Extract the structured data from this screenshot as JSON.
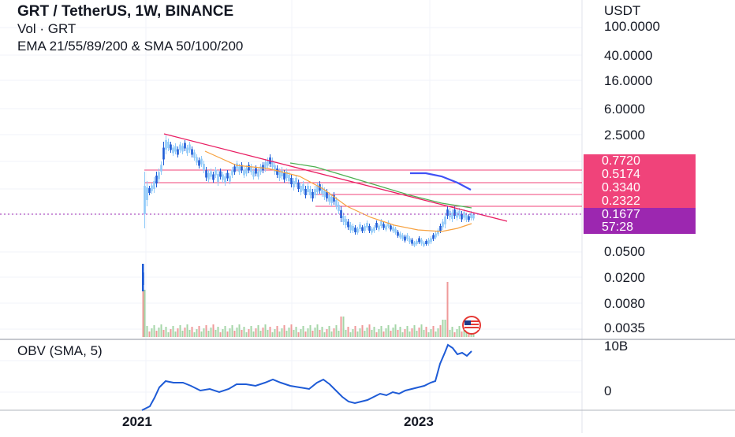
{
  "header": {
    "title": "GRT / TetherUS, 1W, BINANCE",
    "volume_label": "Vol · GRT",
    "indicators_label": "EMA 21/55/89/200 & SMA 50/100/200"
  },
  "price_axis": {
    "currency": "USDT",
    "scale": "log",
    "ticks": [
      "100.0000",
      "40.0000",
      "16.0000",
      "6.0000",
      "2.5000",
      "0.0500",
      "0.0200",
      "0.0080",
      "0.0035"
    ]
  },
  "price_labels": [
    {
      "text": "0.7720",
      "color": "#f0437a"
    },
    {
      "text": "0.5174",
      "color": "#f0437a"
    },
    {
      "text": "0.3340",
      "color": "#f0437a"
    },
    {
      "text": "0.2322",
      "color": "#f0437a"
    },
    {
      "text": "0.1677",
      "color": "#9c27b0"
    },
    {
      "text": "57:28",
      "color": "#9c27b0"
    }
  ],
  "obv_panel": {
    "label": "OBV (SMA, 5)",
    "ticks": [
      "10B",
      "0"
    ]
  },
  "time_axis": {
    "labels": [
      "2021",
      "2023"
    ]
  },
  "colors": {
    "up_candle": "#90caf9",
    "down_candle": "#1e5bd6",
    "ema_orange": "#f7a240",
    "ema_green": "#4caf50",
    "sma_blue": "#3f51f5",
    "trendline": "#e91e63",
    "horizontal_levels": "#f0437a",
    "current_price_line": "#9c27b0",
    "obv_line": "#1e5bd6",
    "volume_up": "#a5d6a7",
    "volume_down": "#ef9a9a"
  },
  "chart_data": {
    "type": "candlestick",
    "symbol": "GRT / TetherUS",
    "interval": "1W",
    "exchange": "BINANCE",
    "y_scale": "log",
    "horizontal_levels": [
      0.772,
      0.5174,
      0.334,
      0.2322
    ],
    "current_price": 0.1677,
    "countdown": "57:28",
    "x_labels": [
      "2021",
      "2023"
    ],
    "obv_ticks": [
      "10B",
      "0"
    ]
  }
}
